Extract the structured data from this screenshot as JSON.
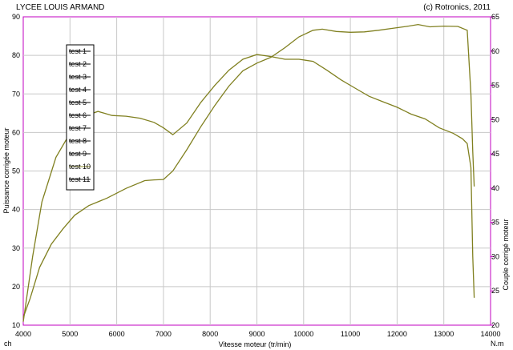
{
  "header": {
    "left_title": "LYCEE LOUIS ARMAND",
    "right_title": "(c) Rotronics, 2011"
  },
  "chart_data": {
    "type": "line",
    "xlabel": "Vitesse moteur (tr/min)",
    "ylabel_left": "Puissance corrigée moteur",
    "ylabel_right": "Couple corrigé moteur",
    "unit_left": "ch",
    "unit_right": "N.m",
    "xlim": [
      4000,
      14000
    ],
    "ylim_left": [
      10,
      90
    ],
    "ylim_right": [
      20,
      65
    ],
    "x_ticks": [
      4000,
      5000,
      6000,
      7000,
      8000,
      9000,
      10000,
      11000,
      12000,
      13000,
      14000
    ],
    "y_left_ticks": [
      10,
      20,
      30,
      40,
      50,
      60,
      70,
      80,
      90
    ],
    "y_right_ticks": [
      20,
      25,
      30,
      35,
      40,
      45,
      50,
      55,
      60,
      65
    ],
    "grid": true,
    "legend_position": "top-left",
    "legend": [
      "test 1",
      "test 2",
      "test 3",
      "test 4",
      "test 5",
      "test 6",
      "test 7",
      "test 8",
      "test 9",
      "test 10",
      "test 11"
    ],
    "legend_active_index": 9,
    "series": [
      {
        "name": "test 10",
        "axis": "left",
        "color": "#808020",
        "x": [
          4000,
          4150,
          4350,
          4600,
          4850,
          5100,
          5400,
          5800,
          6200,
          6600,
          6800,
          7000,
          7200,
          7500,
          7800,
          8100,
          8400,
          8700,
          9000,
          9300,
          9600,
          9900,
          10200,
          10400,
          10700,
          11000,
          11300,
          11600,
          11900,
          12200,
          12450,
          12700,
          13000,
          13300,
          13500,
          13580,
          13620,
          13650
        ],
        "y": [
          12,
          17,
          25,
          31,
          35,
          38.5,
          41,
          43,
          45.5,
          47.5,
          47.7,
          47.8,
          50,
          55.5,
          61.5,
          67,
          72,
          76,
          78,
          79.5,
          82,
          84.8,
          86.5,
          86.8,
          86.2,
          86,
          86.1,
          86.5,
          87,
          87.5,
          88,
          87.4,
          87.6,
          87.5,
          86.5,
          70,
          55,
          46
        ]
      },
      {
        "name": "",
        "axis": "right",
        "color": "#808020",
        "x": [
          4000,
          4200,
          4400,
          4700,
          5000,
          5300,
          5600,
          5900,
          6200,
          6500,
          6800,
          7000,
          7200,
          7500,
          7800,
          8100,
          8400,
          8700,
          9000,
          9300,
          9600,
          9900,
          10200,
          10500,
          10800,
          11100,
          11400,
          11700,
          12000,
          12300,
          12600,
          12900,
          13200,
          13400,
          13500,
          13580,
          13620,
          13650
        ],
        "y": [
          20.5,
          30,
          38,
          44.5,
          48,
          50.5,
          51.2,
          50.6,
          50.5,
          50.2,
          49.6,
          48.8,
          47.8,
          49.5,
          52.5,
          55,
          57.2,
          58.8,
          59.5,
          59.2,
          58.8,
          58.8,
          58.5,
          57.2,
          55.8,
          54.6,
          53.4,
          52.6,
          51.8,
          50.8,
          50.1,
          48.8,
          48,
          47.2,
          46.5,
          43,
          30,
          24
        ]
      }
    ]
  }
}
